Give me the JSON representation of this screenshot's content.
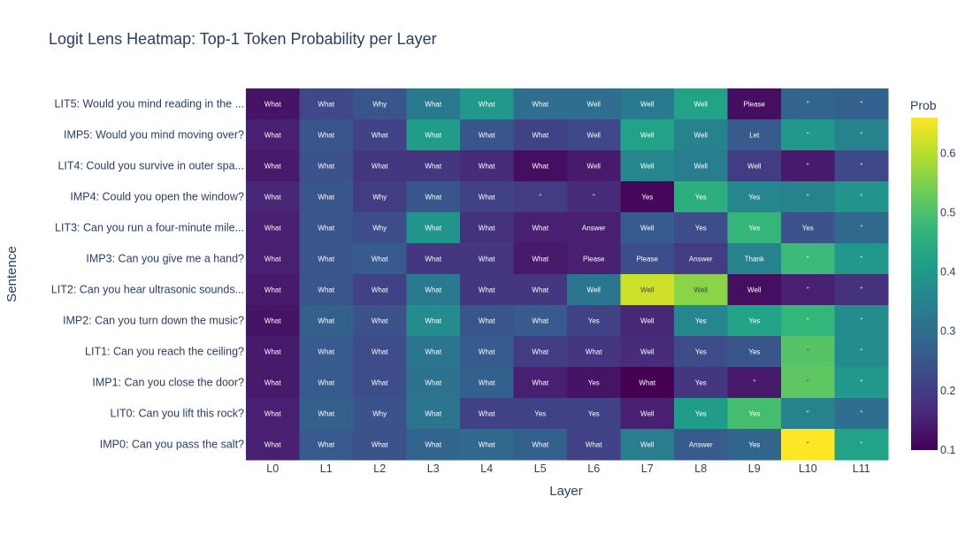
{
  "chart_data": {
    "type": "heatmap",
    "title": "Logit Lens Heatmap: Top-1 Token Probability per Layer",
    "xlabel": "Layer",
    "ylabel": "Sentence",
    "colorbar_title": "Prob",
    "colorscale": "Viridis",
    "zrange": [
      0.1,
      0.66
    ],
    "colorbar_ticks": [
      "0.1",
      "0.2",
      "0.3",
      "0.4",
      "0.5",
      "0.6"
    ],
    "x": [
      "L0",
      "L1",
      "L2",
      "L3",
      "L4",
      "L5",
      "L6",
      "L7",
      "L8",
      "L9",
      "L10",
      "L11"
    ],
    "y": [
      "LIT5: Would you mind reading in the ...",
      "IMP5: Would you mind moving over?",
      "LIT4: Could you survive in outer spa...",
      "IMP4: Could you open the window?",
      "LIT3: Can you run a four-minute mile...",
      "IMP3: Can you give me a hand?",
      "LIT2: Can you hear ultrasonic sounds...",
      "IMP2: Can you turn down the music?",
      "LIT1: Can you reach the ceiling?",
      "IMP1: Can you close the door?",
      "LIT0: Can you lift this rock?",
      "IMP0: Can you pass the salt?"
    ],
    "z": [
      [
        0.13,
        0.22,
        0.25,
        0.33,
        0.4,
        0.3,
        0.3,
        0.33,
        0.42,
        0.12,
        0.28,
        0.27
      ],
      [
        0.15,
        0.25,
        0.21,
        0.41,
        0.25,
        0.21,
        0.22,
        0.42,
        0.35,
        0.26,
        0.4,
        0.35
      ],
      [
        0.14,
        0.24,
        0.19,
        0.19,
        0.17,
        0.12,
        0.14,
        0.36,
        0.34,
        0.2,
        0.14,
        0.22
      ],
      [
        0.16,
        0.25,
        0.2,
        0.25,
        0.21,
        0.2,
        0.17,
        0.11,
        0.45,
        0.36,
        0.35,
        0.39
      ],
      [
        0.15,
        0.25,
        0.23,
        0.39,
        0.18,
        0.15,
        0.15,
        0.26,
        0.23,
        0.47,
        0.24,
        0.29
      ],
      [
        0.15,
        0.25,
        0.26,
        0.19,
        0.19,
        0.14,
        0.15,
        0.23,
        0.2,
        0.35,
        0.48,
        0.4
      ],
      [
        0.14,
        0.25,
        0.21,
        0.33,
        0.19,
        0.19,
        0.32,
        0.62,
        0.56,
        0.12,
        0.15,
        0.18
      ],
      [
        0.13,
        0.27,
        0.24,
        0.37,
        0.25,
        0.26,
        0.21,
        0.16,
        0.36,
        0.42,
        0.47,
        0.37
      ],
      [
        0.14,
        0.26,
        0.23,
        0.32,
        0.26,
        0.2,
        0.19,
        0.17,
        0.23,
        0.25,
        0.51,
        0.37
      ],
      [
        0.14,
        0.26,
        0.23,
        0.31,
        0.27,
        0.15,
        0.13,
        0.1,
        0.19,
        0.14,
        0.52,
        0.4
      ],
      [
        0.15,
        0.27,
        0.24,
        0.32,
        0.21,
        0.21,
        0.21,
        0.15,
        0.41,
        0.49,
        0.35,
        0.3
      ],
      [
        0.15,
        0.26,
        0.24,
        0.28,
        0.29,
        0.27,
        0.21,
        0.34,
        0.26,
        0.28,
        0.66,
        0.42
      ]
    ],
    "text": [
      [
        "What",
        "What",
        "Why",
        "What",
        "What",
        "What",
        "Well",
        "Well",
        "Well",
        "Please",
        "\"",
        "\""
      ],
      [
        "What",
        "What",
        "What",
        "What",
        "What",
        "What",
        "Well",
        "Well",
        "Well",
        "Let",
        "\"",
        "\""
      ],
      [
        "What",
        "What",
        "What",
        "What",
        "What",
        "What",
        "Well",
        "Well",
        "Well",
        "Well",
        "\"",
        "\""
      ],
      [
        "What",
        "What",
        "Why",
        "What",
        "What",
        "\"",
        "\"",
        "Yes",
        "Yes",
        "Yes",
        "\"",
        "\""
      ],
      [
        "What",
        "What",
        "Why",
        "What",
        "What",
        "What",
        "Answer",
        "Well",
        "Yes",
        "Yes",
        "Yes",
        "\""
      ],
      [
        "What",
        "What",
        "What",
        "What",
        "What",
        "What",
        "Please",
        "Please",
        "Answer",
        "Thank",
        "\"",
        "\""
      ],
      [
        "What",
        "What",
        "What",
        "What",
        "What",
        "What",
        "Well",
        "Well",
        "Well",
        "Well",
        "\"",
        "\""
      ],
      [
        "What",
        "What",
        "What",
        "What",
        "What",
        "What",
        "Yes",
        "Well",
        "Yes",
        "Yes",
        "\"",
        "\""
      ],
      [
        "What",
        "What",
        "What",
        "What",
        "What",
        "What",
        "What",
        "Well",
        "Yes",
        "Yes",
        "\"",
        "\""
      ],
      [
        "What",
        "What",
        "What",
        "What",
        "What",
        "What",
        "Yes",
        "What",
        "Yes",
        "\"",
        "\"",
        "\""
      ],
      [
        "What",
        "What",
        "Why",
        "What",
        "What",
        "Yes",
        "Yes",
        "Well",
        "Yes",
        "Yes",
        "\"",
        "\""
      ],
      [
        "What",
        "What",
        "What",
        "What",
        "What",
        "What",
        "What",
        "Well",
        "Answer",
        "Yes",
        "\"",
        "\""
      ]
    ]
  }
}
